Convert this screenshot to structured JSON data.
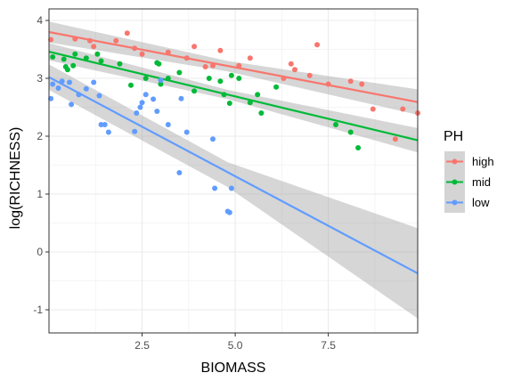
{
  "chart_data": {
    "type": "scatter",
    "xlabel": "BIOMASS",
    "ylabel": "log(RICHNESS)",
    "xlim": [
      0.0,
      9.9
    ],
    "ylim": [
      -1.4,
      4.2
    ],
    "x_ticks": [
      2.5,
      5.0,
      7.5
    ],
    "x_tick_labels": [
      "2.5",
      "5.0",
      "7.5"
    ],
    "y_ticks": [
      -1,
      0,
      1,
      2,
      3,
      4
    ],
    "y_tick_labels": [
      "-1",
      "0",
      "1",
      "2",
      "3",
      "4"
    ],
    "grid": true,
    "theme": "bw",
    "legend": {
      "title": "PH",
      "position": "right",
      "entries": [
        "high",
        "mid",
        "low"
      ]
    },
    "series": [
      {
        "name": "high",
        "color": "#F8766D",
        "points": [
          [
            0.05,
            3.67
          ],
          [
            0.7,
            3.68
          ],
          [
            1.1,
            3.65
          ],
          [
            1.2,
            3.55
          ],
          [
            1.8,
            3.65
          ],
          [
            2.1,
            3.78
          ],
          [
            2.3,
            3.52
          ],
          [
            2.5,
            3.42
          ],
          [
            3.2,
            3.45
          ],
          [
            3.7,
            3.35
          ],
          [
            3.9,
            3.55
          ],
          [
            4.2,
            3.2
          ],
          [
            4.4,
            3.22
          ],
          [
            4.6,
            3.48
          ],
          [
            5.1,
            3.22
          ],
          [
            5.4,
            3.35
          ],
          [
            6.3,
            3.0
          ],
          [
            6.5,
            3.25
          ],
          [
            6.6,
            3.15
          ],
          [
            7.0,
            3.05
          ],
          [
            7.2,
            3.58
          ],
          [
            7.5,
            2.9
          ],
          [
            8.1,
            2.95
          ],
          [
            8.4,
            2.9
          ],
          [
            8.7,
            2.47
          ],
          [
            9.3,
            1.95
          ],
          [
            9.5,
            2.47
          ],
          [
            9.9,
            2.4
          ]
        ],
        "fit": {
          "x": [
            0.0,
            9.9
          ],
          "y": [
            3.8,
            2.59
          ]
        },
        "band": {
          "x": [
            0.0,
            4.8,
            9.9
          ],
          "lower": [
            3.62,
            3.12,
            2.37
          ],
          "upper": [
            3.98,
            3.3,
            2.81
          ]
        }
      },
      {
        "name": "mid",
        "color": "#00BA38",
        "points": [
          [
            0.1,
            3.37
          ],
          [
            0.4,
            3.33
          ],
          [
            0.45,
            3.2
          ],
          [
            0.5,
            3.15
          ],
          [
            0.65,
            3.22
          ],
          [
            0.7,
            3.42
          ],
          [
            1.0,
            3.35
          ],
          [
            1.3,
            3.42
          ],
          [
            1.4,
            3.3
          ],
          [
            1.9,
            3.25
          ],
          [
            2.2,
            2.88
          ],
          [
            2.6,
            3.0
          ],
          [
            2.9,
            3.27
          ],
          [
            2.95,
            3.25
          ],
          [
            3.0,
            2.9
          ],
          [
            3.2,
            3.0
          ],
          [
            3.5,
            3.1
          ],
          [
            3.9,
            2.78
          ],
          [
            4.3,
            3.0
          ],
          [
            4.6,
            2.95
          ],
          [
            4.7,
            2.72
          ],
          [
            4.85,
            2.57
          ],
          [
            4.9,
            3.05
          ],
          [
            5.1,
            3.0
          ],
          [
            5.4,
            2.58
          ],
          [
            5.6,
            2.72
          ],
          [
            5.7,
            2.4
          ],
          [
            6.1,
            2.85
          ],
          [
            7.7,
            2.2
          ],
          [
            8.1,
            2.07
          ],
          [
            8.3,
            1.8
          ]
        ],
        "fit": {
          "x": [
            0.0,
            9.9
          ],
          "y": [
            3.46,
            1.93
          ]
        },
        "band": {
          "x": [
            0.0,
            4.8,
            9.9
          ],
          "lower": [
            3.31,
            2.64,
            1.72
          ],
          "upper": [
            3.61,
            2.8,
            2.14
          ]
        }
      },
      {
        "name": "low",
        "color": "#619CFF",
        "points": [
          [
            0.05,
            2.65
          ],
          [
            0.1,
            2.9
          ],
          [
            0.25,
            2.83
          ],
          [
            0.35,
            2.95
          ],
          [
            0.55,
            2.93
          ],
          [
            0.6,
            2.55
          ],
          [
            0.8,
            2.72
          ],
          [
            1.0,
            2.82
          ],
          [
            1.2,
            2.93
          ],
          [
            1.35,
            2.7
          ],
          [
            1.4,
            2.2
          ],
          [
            1.5,
            2.2
          ],
          [
            1.6,
            2.07
          ],
          [
            2.3,
            2.08
          ],
          [
            2.35,
            2.4
          ],
          [
            2.45,
            2.5
          ],
          [
            2.5,
            2.58
          ],
          [
            2.6,
            2.72
          ],
          [
            2.8,
            2.64
          ],
          [
            2.9,
            2.43
          ],
          [
            3.0,
            2.97
          ],
          [
            3.2,
            2.2
          ],
          [
            3.5,
            1.37
          ],
          [
            3.55,
            2.65
          ],
          [
            3.7,
            2.07
          ],
          [
            4.4,
            1.95
          ],
          [
            4.45,
            1.1
          ],
          [
            4.8,
            0.7
          ],
          [
            4.85,
            0.68
          ],
          [
            4.9,
            1.1
          ]
        ],
        "fit": {
          "x": [
            0.0,
            9.9
          ],
          "y": [
            3.02,
            -0.37
          ]
        },
        "band": {
          "x": [
            0.0,
            4.8,
            9.9
          ],
          "lower": [
            2.8,
            1.12,
            -1.15
          ],
          "upper": [
            3.24,
            1.55,
            0.41
          ]
        }
      }
    ]
  }
}
